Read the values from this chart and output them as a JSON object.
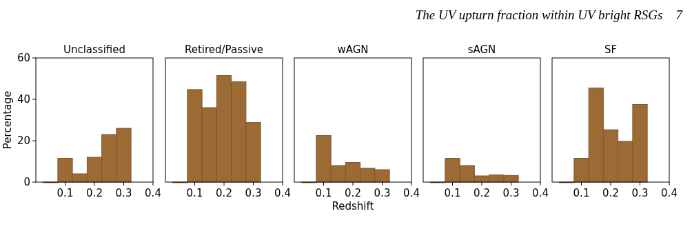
{
  "chart_data": [
    {
      "type": "histogram",
      "title": "Unclassified",
      "ylabel": "Percentage",
      "bins": [
        0.025,
        0.075,
        0.125,
        0.175,
        0.225,
        0.275,
        0.325
      ],
      "values": [
        0,
        11.5,
        4,
        12,
        23,
        26
      ],
      "color": "#9c6b35",
      "xlim": [
        0,
        0.4
      ],
      "xticks": [
        0.1,
        0.2,
        0.3,
        0.4
      ],
      "ylim": [
        0,
        60
      ],
      "yticks": [
        0,
        20,
        40,
        60
      ],
      "annotations": [
        "The UV upturn fraction within UV bright RSGs    7"
      ]
    },
    {
      "type": "histogram",
      "title": "Retired/Passive",
      "bins": [
        0.025,
        0.075,
        0.125,
        0.175,
        0.225,
        0.275,
        0.325
      ],
      "values": [
        0,
        44.7,
        36,
        51.5,
        48.5,
        28.8
      ],
      "color": "#9c6b35",
      "xlim": [
        0,
        0.4
      ],
      "xticks": [
        0.1,
        0.2,
        0.3,
        0.4
      ],
      "ylim": [
        0,
        60
      ],
      "tick_labels": "x"
    },
    {
      "type": "histogram",
      "title": "wAGN",
      "xlabel": "Redshift",
      "bins": [
        0.025,
        0.075,
        0.125,
        0.175,
        0.225,
        0.275,
        0.325
      ],
      "values": [
        0,
        22.5,
        8,
        9.5,
        6.7,
        6
      ],
      "color": "#9c6b35",
      "xlim": [
        0,
        0.4
      ],
      "xticks": [
        0.1,
        0.2,
        0.3,
        0.4
      ],
      "ylim": [
        0,
        60
      ],
      "tick_labels": "x"
    },
    {
      "type": "histogram",
      "title": "sAGN",
      "bins": [
        0.025,
        0.075,
        0.125,
        0.175,
        0.225,
        0.275,
        0.325
      ],
      "values": [
        0,
        11.5,
        8,
        3,
        3.5,
        3.2
      ],
      "color": "#9c6b35",
      "xlim": [
        0,
        0.4
      ],
      "xticks": [
        0.1,
        0.2,
        0.3,
        0.4
      ],
      "ylim": [
        0,
        60
      ],
      "tick_labels": "x"
    },
    {
      "type": "histogram",
      "title": "SF",
      "bins": [
        0.025,
        0.075,
        0.125,
        0.175,
        0.225,
        0.275,
        0.325
      ],
      "values": [
        0,
        11.5,
        45.5,
        25.3,
        19.7,
        37.5
      ],
      "color": "#9c6b35",
      "xlim": [
        0,
        0.4
      ],
      "xticks": [
        0.1,
        0.2,
        0.3,
        0.4
      ],
      "ylim": [
        0,
        60
      ],
      "tick_labels": "x"
    }
  ]
}
